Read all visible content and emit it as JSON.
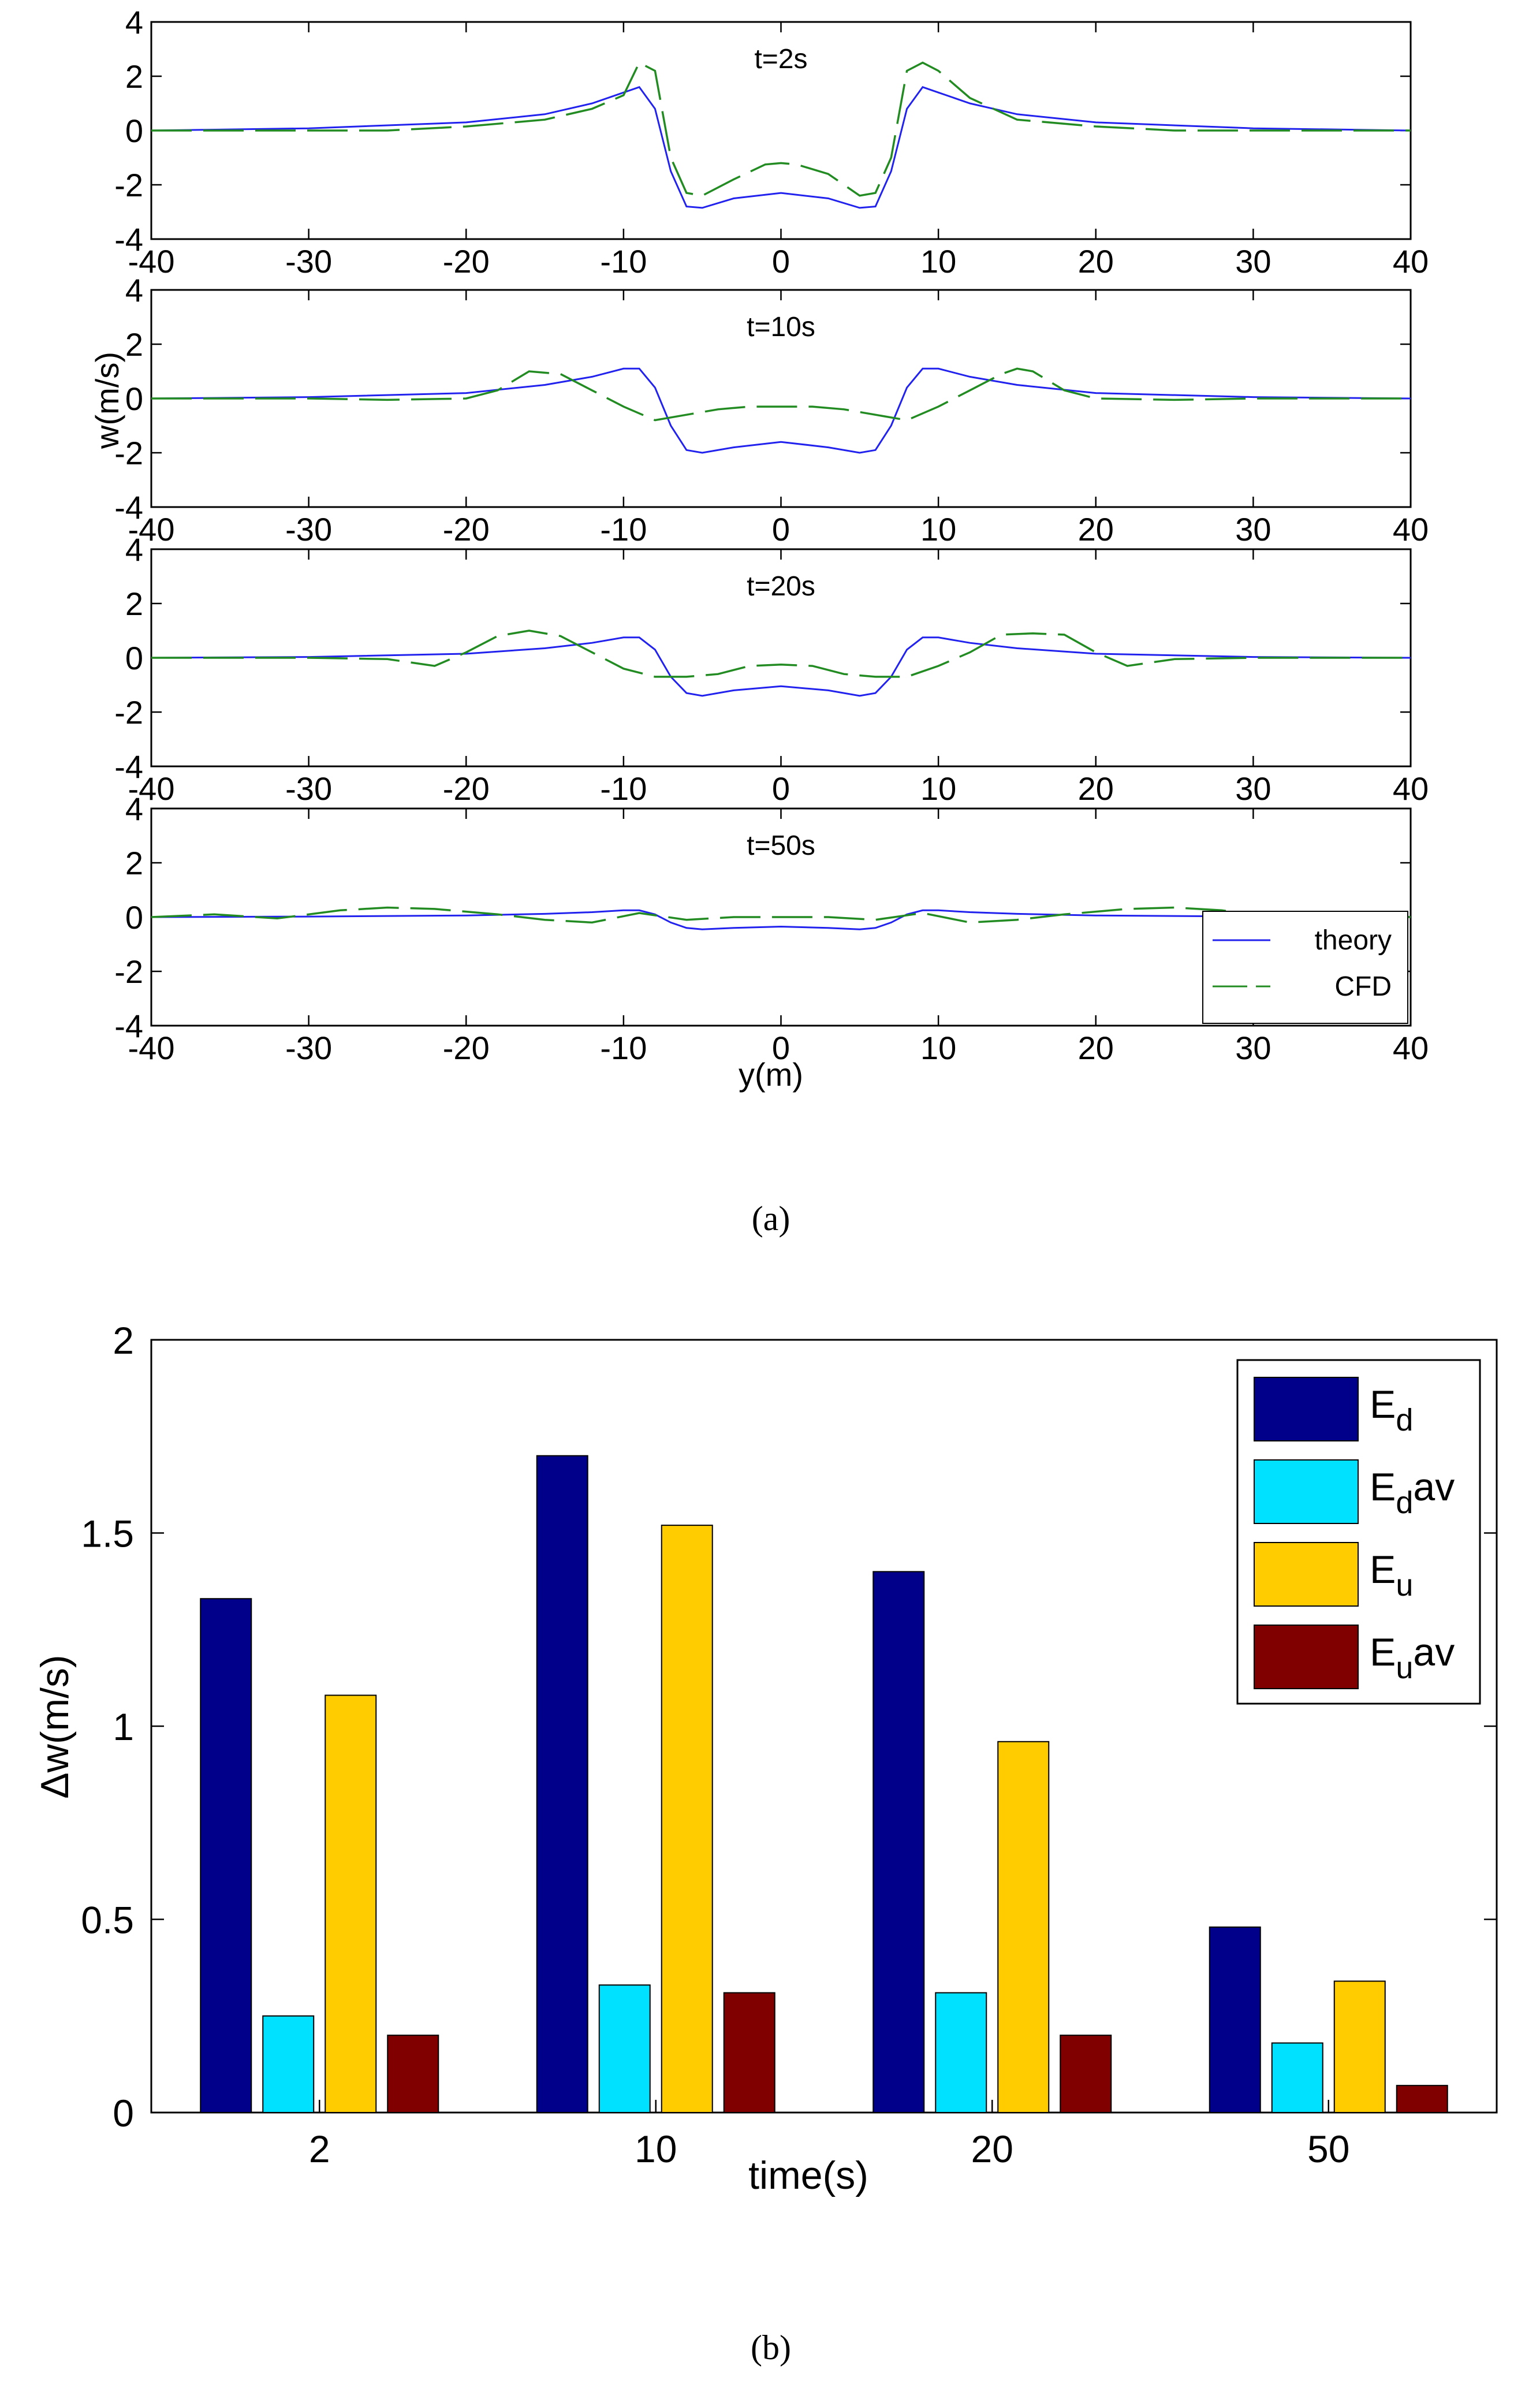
{
  "chart_data": [
    {
      "type": "line",
      "panel_label": "(a)",
      "xlabel": "y(m)",
      "ylabel": "w(m/s)",
      "xlim": [
        -40,
        40
      ],
      "ylim": [
        -4,
        4
      ],
      "xticks": [
        -40,
        -30,
        -20,
        -10,
        0,
        10,
        20,
        30,
        40
      ],
      "yticks": [
        -4,
        -2,
        0,
        2,
        4
      ],
      "legend": {
        "position": "bottom-right",
        "entries": [
          "theory",
          "CFD"
        ]
      },
      "colors": {
        "theory": "#2222ee",
        "CFD": "#228b22"
      },
      "subplots": [
        {
          "title": "t=2s",
          "series": [
            {
              "name": "theory",
              "x": [
                -40,
                -30,
                -20,
                -15,
                -12,
                -10,
                -9,
                -8,
                -7,
                -6,
                -5,
                -3,
                0,
                3,
                5,
                6,
                7,
                8,
                9,
                10,
                12,
                15,
                20,
                30,
                40
              ],
              "y": [
                0,
                0.08,
                0.3,
                0.6,
                1,
                1.4,
                1.6,
                0.8,
                -1.5,
                -2.8,
                -2.85,
                -2.5,
                -2.3,
                -2.5,
                -2.85,
                -2.8,
                -1.5,
                0.8,
                1.6,
                1.4,
                1,
                0.6,
                0.3,
                0.08,
                0
              ]
            },
            {
              "name": "CFD",
              "x": [
                -40,
                -30,
                -25,
                -20,
                -15,
                -12,
                -10,
                -9,
                -8,
                -7,
                -6,
                -5,
                -3,
                -1,
                0,
                1,
                3,
                4,
                5,
                6,
                7,
                8,
                9,
                10,
                12,
                15,
                20,
                25,
                30,
                40
              ],
              "y": [
                0,
                0,
                0,
                0.15,
                0.4,
                0.8,
                1.3,
                2.5,
                2.2,
                -1,
                -2.3,
                -2.4,
                -1.8,
                -1.25,
                -1.2,
                -1.25,
                -1.6,
                -2,
                -2.4,
                -2.3,
                -1,
                2.2,
                2.5,
                2.2,
                1.2,
                0.4,
                0.15,
                0,
                0,
                0
              ]
            }
          ]
        },
        {
          "title": "t=10s",
          "series": [
            {
              "name": "theory",
              "x": [
                -40,
                -30,
                -20,
                -15,
                -12,
                -10,
                -9,
                -8,
                -7,
                -6,
                -5,
                -3,
                0,
                3,
                5,
                6,
                7,
                8,
                9,
                10,
                12,
                15,
                20,
                30,
                40
              ],
              "y": [
                0,
                0.05,
                0.2,
                0.5,
                0.8,
                1.1,
                1.1,
                0.4,
                -1,
                -1.9,
                -2,
                -1.8,
                -1.6,
                -1.8,
                -2,
                -1.9,
                -1,
                0.4,
                1.1,
                1.1,
                0.8,
                0.5,
                0.2,
                0.05,
                0
              ]
            },
            {
              "name": "CFD",
              "x": [
                -40,
                -30,
                -25,
                -20,
                -18,
                -16,
                -14,
                -12,
                -10,
                -8,
                -6,
                -4,
                -2,
                0,
                2,
                4,
                6,
                8,
                10,
                12,
                14,
                15,
                16,
                18,
                20,
                25,
                30,
                40
              ],
              "y": [
                0,
                0,
                -0.05,
                0,
                0.3,
                1,
                0.9,
                0.3,
                -0.3,
                -0.8,
                -0.6,
                -0.4,
                -0.3,
                -0.3,
                -0.3,
                -0.4,
                -0.6,
                -0.8,
                -0.3,
                0.3,
                0.9,
                1.1,
                1,
                0.3,
                0,
                -0.05,
                0,
                0
              ]
            }
          ]
        },
        {
          "title": "t=20s",
          "series": [
            {
              "name": "theory",
              "x": [
                -40,
                -30,
                -20,
                -15,
                -12,
                -10,
                -9,
                -8,
                -7,
                -6,
                -5,
                -3,
                0,
                3,
                5,
                6,
                7,
                8,
                9,
                10,
                12,
                15,
                20,
                30,
                40
              ],
              "y": [
                0,
                0.03,
                0.15,
                0.35,
                0.55,
                0.75,
                0.75,
                0.3,
                -0.7,
                -1.3,
                -1.4,
                -1.2,
                -1.05,
                -1.2,
                -1.4,
                -1.3,
                -0.7,
                0.3,
                0.75,
                0.75,
                0.55,
                0.35,
                0.15,
                0.03,
                0
              ]
            },
            {
              "name": "CFD",
              "x": [
                -40,
                -30,
                -25,
                -22,
                -20,
                -18,
                -16,
                -14,
                -12,
                -10,
                -8,
                -6,
                -4,
                -2,
                0,
                2,
                4,
                6,
                8,
                10,
                12,
                14,
                16,
                18,
                20,
                22,
                25,
                30,
                40
              ],
              "y": [
                0,
                0,
                -0.05,
                -0.3,
                0.2,
                0.8,
                1,
                0.8,
                0.2,
                -0.4,
                -0.7,
                -0.7,
                -0.6,
                -0.3,
                -0.25,
                -0.3,
                -0.6,
                -0.7,
                -0.7,
                -0.3,
                0.2,
                0.85,
                0.9,
                0.85,
                0.2,
                -0.3,
                -0.05,
                0,
                0
              ]
            }
          ]
        },
        {
          "title": "t=50s",
          "series": [
            {
              "name": "theory",
              "x": [
                -40,
                -30,
                -20,
                -15,
                -12,
                -10,
                -9,
                -8,
                -7,
                -6,
                -5,
                -3,
                0,
                3,
                5,
                6,
                7,
                8,
                9,
                10,
                12,
                15,
                20,
                30,
                40
              ],
              "y": [
                0,
                0.02,
                0.06,
                0.12,
                0.18,
                0.25,
                0.25,
                0.1,
                -0.2,
                -0.4,
                -0.45,
                -0.4,
                -0.35,
                -0.4,
                -0.45,
                -0.4,
                -0.2,
                0.1,
                0.25,
                0.25,
                0.18,
                0.12,
                0.06,
                0.02,
                0
              ]
            },
            {
              "name": "CFD",
              "x": [
                -40,
                -36,
                -32,
                -28,
                -25,
                -22,
                -18,
                -15,
                -12,
                -9,
                -6,
                -3,
                0,
                3,
                6,
                9,
                12,
                15,
                18,
                22,
                25,
                28,
                32,
                36,
                40
              ],
              "y": [
                0,
                0.1,
                -0.05,
                0.25,
                0.35,
                0.3,
                0.1,
                -0.1,
                -0.2,
                0.15,
                -0.1,
                0,
                0,
                0,
                -0.1,
                0.15,
                -0.2,
                -0.1,
                0.1,
                0.3,
                0.35,
                0.25,
                -0.05,
                0.1,
                0
              ]
            }
          ]
        }
      ]
    },
    {
      "type": "bar",
      "panel_label": "(b)",
      "xlabel": "time(s)",
      "ylabel": "Δw(m/s)",
      "categories": [
        "2",
        "10",
        "20",
        "50"
      ],
      "ylim": [
        0,
        2
      ],
      "yticks": [
        "0",
        "0.5",
        "1",
        "1.5",
        "2"
      ],
      "legend": {
        "position": "top-right"
      },
      "series": [
        {
          "name": "E",
          "sub": "d",
          "suffix": "",
          "color": "#00008b",
          "values": [
            1.33,
            1.7,
            1.4,
            0.48
          ]
        },
        {
          "name": "E",
          "sub": "d",
          "suffix": "av",
          "color": "#00e0ff",
          "values": [
            0.25,
            0.33,
            0.31,
            0.18
          ]
        },
        {
          "name": "E",
          "sub": "u",
          "suffix": "",
          "color": "#ffcc00",
          "values": [
            1.08,
            1.52,
            0.96,
            0.34
          ]
        },
        {
          "name": "E",
          "sub": "u",
          "suffix": "av",
          "color": "#800000",
          "values": [
            0.2,
            0.31,
            0.2,
            0.07
          ]
        }
      ]
    }
  ]
}
